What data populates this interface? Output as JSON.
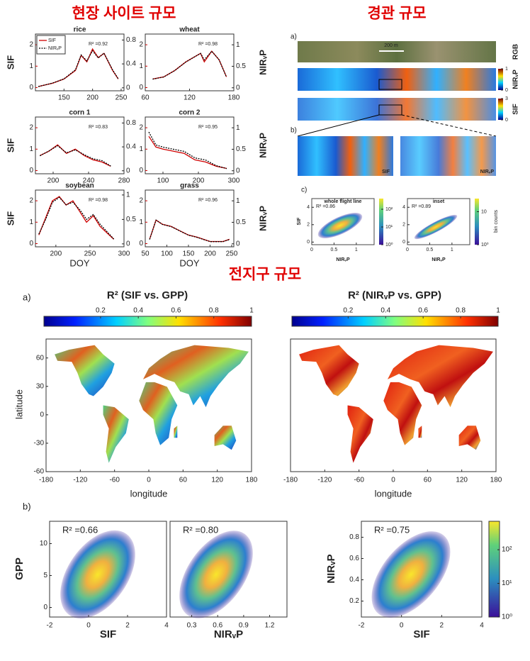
{
  "titles": {
    "site": "현장 사이트 규모",
    "landscape": "경관 규모",
    "global": "전지구 규모"
  },
  "site": {
    "left_label": "SIF",
    "right_label": "NIRᵥP",
    "x_label": "DOY",
    "legend": [
      "SIF",
      "NIRᵥP"
    ],
    "colors": [
      "#d00000",
      "#000000"
    ],
    "ylim": [
      -0.15,
      2.5
    ],
    "yticks": [
      0,
      1,
      2
    ],
    "panels": [
      {
        "name": "rice",
        "r2": "R² =0.92",
        "xlim": [
          100,
          255
        ],
        "xticks": [
          150,
          200,
          250
        ],
        "y2lim": [
          -0.05,
          0.9
        ],
        "y2ticks": [
          0,
          0.4,
          0.8
        ],
        "x": [
          105,
          130,
          150,
          170,
          180,
          190,
          200,
          210,
          220,
          235,
          245
        ],
        "sif": [
          0.05,
          0.2,
          0.4,
          0.8,
          1.5,
          1.2,
          1.8,
          1.4,
          1.6,
          0.8,
          0.4
        ],
        "nirvp": [
          0.02,
          0.08,
          0.15,
          0.3,
          0.55,
          0.45,
          0.62,
          0.5,
          0.58,
          0.3,
          0.15
        ]
      },
      {
        "name": "wheat",
        "r2": "R² =0.98",
        "xlim": [
          60,
          180
        ],
        "xticks": [
          60,
          120,
          180
        ],
        "y2lim": [
          -0.07,
          1.25
        ],
        "y2ticks": [
          0,
          0.5,
          1
        ],
        "x": [
          70,
          85,
          100,
          115,
          125,
          135,
          140,
          150,
          160,
          170
        ],
        "sif": [
          0.4,
          0.5,
          0.8,
          1.2,
          1.4,
          1.6,
          1.2,
          1.7,
          1.3,
          0.5
        ],
        "nirvp": [
          0.2,
          0.25,
          0.4,
          0.6,
          0.7,
          0.8,
          0.65,
          0.85,
          0.65,
          0.25
        ]
      },
      {
        "name": "corn 1",
        "r2": "R² =0.83",
        "xlim": [
          180,
          280
        ],
        "xticks": [
          200,
          240,
          280
        ],
        "y2lim": [
          -0.05,
          0.9
        ],
        "y2ticks": [
          0,
          0.4,
          0.8
        ],
        "x": [
          185,
          195,
          205,
          215,
          225,
          235,
          245,
          255,
          265
        ],
        "sif": [
          0.7,
          0.9,
          1.2,
          0.8,
          1.0,
          0.7,
          0.5,
          0.4,
          0.2
        ],
        "nirvp": [
          0.25,
          0.33,
          0.42,
          0.3,
          0.35,
          0.27,
          0.2,
          0.17,
          0.08
        ]
      },
      {
        "name": "corn 2",
        "r2": "R² =0.95",
        "xlim": [
          50,
          300
        ],
        "xticks": [
          100,
          200,
          300
        ],
        "y2lim": [
          -0.07,
          1.25
        ],
        "y2ticks": [
          0,
          0.5,
          1
        ],
        "x": [
          60,
          80,
          100,
          130,
          160,
          190,
          220,
          250,
          280
        ],
        "sif": [
          1.6,
          1.1,
          1.0,
          0.9,
          0.8,
          0.5,
          0.4,
          0.2,
          0.1
        ],
        "nirvp": [
          0.9,
          0.6,
          0.55,
          0.5,
          0.45,
          0.3,
          0.25,
          0.12,
          0.05
        ]
      },
      {
        "name": "soybean",
        "r2": "R² =0.98",
        "xlim": [
          170,
          300
        ],
        "xticks": [
          200,
          250,
          300
        ],
        "y2lim": [
          -0.06,
          1.1
        ],
        "y2ticks": [
          0,
          0.5,
          1
        ],
        "x": [
          175,
          185,
          195,
          205,
          215,
          225,
          235,
          245,
          255,
          265,
          275,
          285
        ],
        "sif": [
          0.4,
          1.2,
          2.0,
          2.2,
          1.8,
          2.0,
          1.5,
          1.0,
          1.3,
          0.8,
          0.5,
          0.2
        ],
        "nirvp": [
          0.2,
          0.5,
          0.85,
          0.95,
          0.8,
          0.85,
          0.7,
          0.5,
          0.6,
          0.4,
          0.25,
          0.1
        ]
      },
      {
        "name": "grass",
        "r2": "R² =0.96",
        "xlim": [
          50,
          255
        ],
        "xticks": [
          50,
          100,
          150,
          200,
          250
        ],
        "y2lim": [
          -0.07,
          1.25
        ],
        "y2ticks": [
          0,
          0.5,
          1
        ],
        "x": [
          60,
          75,
          90,
          110,
          130,
          150,
          170,
          200,
          230,
          245
        ],
        "sif": [
          0.2,
          1.1,
          0.9,
          0.8,
          0.6,
          0.4,
          0.3,
          0.1,
          0.1,
          0.2
        ],
        "nirvp": [
          0.1,
          0.55,
          0.45,
          0.4,
          0.3,
          0.2,
          0.15,
          0.05,
          0.05,
          0.1
        ]
      }
    ]
  },
  "landscape": {
    "panel_labels": [
      "a)",
      "b)",
      "c)"
    ],
    "scale_bar": "200 m",
    "strip_labels": [
      "RGB",
      "NIRᵥP",
      "SIF"
    ],
    "nirvp_colorbar": {
      "ylim": [
        0,
        1
      ],
      "yticks": [
        0,
        1
      ]
    },
    "sif_colorbar": {
      "ylim": [
        0,
        3
      ],
      "yticks": [
        0,
        3
      ]
    },
    "inset_labels": [
      "SIF",
      "NIRᵥP"
    ],
    "x_label": "NIRᵥP",
    "y_label": "SIF",
    "colorbar_label": "bin counts",
    "scatters": [
      {
        "title": "whole flight line",
        "r2": "R² =0.86",
        "xlim": [
          0,
          1.4
        ],
        "xticks": [
          0,
          0.5,
          1
        ],
        "ylim": [
          -0.3,
          5
        ],
        "yticks": [
          0,
          2,
          4
        ],
        "clim": [
          1,
          400
        ],
        "cticks": [
          {
            "value": 1,
            "label": "10⁰"
          },
          {
            "value": 10,
            "label": "10¹"
          },
          {
            "value": 100,
            "label": "10²"
          }
        ]
      },
      {
        "title": "inset",
        "r2": "R² =0.89",
        "xlim": [
          0,
          1.4
        ],
        "xticks": [
          0,
          0.5,
          1
        ],
        "ylim": [
          -0.3,
          5
        ],
        "yticks": [
          0,
          2,
          4
        ],
        "clim": [
          1,
          25
        ],
        "cticks": [
          {
            "value": 1,
            "label": "10⁰"
          },
          {
            "value": 10,
            "label": "10"
          }
        ]
      }
    ]
  },
  "global": {
    "panel_labels": [
      "a)",
      "b)"
    ],
    "maps": [
      "R² (SIF vs. GPP)",
      "R² (NIRᵥP vs. GPP)"
    ],
    "colorbar": {
      "xlim": [
        -0.1,
        1
      ],
      "xticks": [
        0.2,
        0.4,
        0.6,
        0.8,
        1
      ]
    },
    "lat_label": "latitude",
    "lon_label": "longitude",
    "ylim": [
      -60,
      80
    ],
    "yticks": [
      60,
      30,
      0,
      -30,
      -60
    ],
    "xlim": [
      -180,
      180
    ],
    "xticks": [
      -180,
      -120,
      -60,
      0,
      60,
      120,
      180
    ],
    "scatters": [
      {
        "r2": "R² =0.66",
        "x_label": "SIF",
        "y_label": "GPP",
        "xlim": [
          -2,
          4
        ],
        "xticks": [
          -2,
          0,
          2,
          4
        ],
        "ylim": [
          -1.5,
          13.5
        ],
        "yticks": [
          0,
          5,
          10
        ]
      },
      {
        "r2": "R² =0.80",
        "x_label": "NIRᵥP",
        "xlim": [
          0.05,
          1.4
        ],
        "xticks": [
          0.3,
          0.6,
          0.9,
          1.2
        ],
        "ylim": [
          -1.5,
          13.5
        ]
      },
      {
        "r2": "R² =0.75",
        "x_label": "SIF",
        "y_label": "NIRᵥP",
        "xlim": [
          -2,
          4
        ],
        "xticks": [
          -2,
          0,
          2,
          4
        ],
        "ylim": [
          0.05,
          0.95
        ],
        "yticks": [
          0.2,
          0.4,
          0.6,
          0.8
        ]
      }
    ],
    "density_colorbar": {
      "log": true,
      "ylim": [
        1,
        700
      ],
      "yticks": [
        {
          "value": 1,
          "label": "10⁰"
        },
        {
          "value": 10,
          "label": "10¹"
        },
        {
          "value": 100,
          "label": "10²"
        }
      ]
    }
  }
}
